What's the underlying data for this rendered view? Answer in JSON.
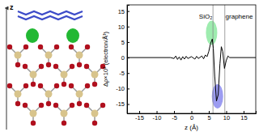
{
  "chart_data": {
    "type": "line",
    "xlabel": "z (Å)",
    "ylabel": "Δρ×10³ (electron/Å³)",
    "xlim": [
      -18.5,
      18.5
    ],
    "xticks": [
      -15,
      -10,
      -5,
      0,
      5,
      10,
      15
    ],
    "ylim": [
      -18,
      17
    ],
    "yticks": [
      -15,
      -10,
      -5,
      0,
      5,
      10,
      15
    ],
    "grid": false,
    "series": [
      {
        "name": "Δρ",
        "color": "#000000",
        "x": [
          -18.5,
          -6,
          -5,
          -4.5,
          -4,
          -3.5,
          -3,
          -2.5,
          -2,
          -1.5,
          -1,
          0,
          1,
          1.5,
          2,
          3,
          3.5,
          4,
          4.5,
          5,
          5.5,
          6,
          6.3,
          6.7,
          7.2,
          7.7,
          8.2,
          8.6,
          9,
          9.5,
          10,
          10.5,
          11,
          18.5
        ],
        "values": [
          0,
          0,
          -0.3,
          0.5,
          -0.6,
          0.2,
          -0.8,
          0.3,
          -0.5,
          0.4,
          -0.3,
          0.3,
          -0.5,
          0.4,
          -0.3,
          0.5,
          -0.4,
          0.8,
          0.3,
          2,
          4.5,
          6,
          3,
          -6,
          -14,
          -12,
          -2,
          3.5,
          2,
          -3.5,
          -1,
          0.5,
          0,
          0
        ]
      }
    ],
    "vlines": [
      6.2,
      9.6
    ],
    "highlights": [
      {
        "x": 5.8,
        "y": 8,
        "color": "#5ee07a"
      },
      {
        "x": 7.5,
        "y": -12.5,
        "color": "#5a5ae8"
      }
    ],
    "annotations": [
      {
        "text": "SiO₂",
        "x": 6.0,
        "y": 12.5
      },
      {
        "text": "graphene",
        "x": 9.8,
        "y": 12.5
      }
    ]
  },
  "structure": {
    "axis_label": "z"
  }
}
